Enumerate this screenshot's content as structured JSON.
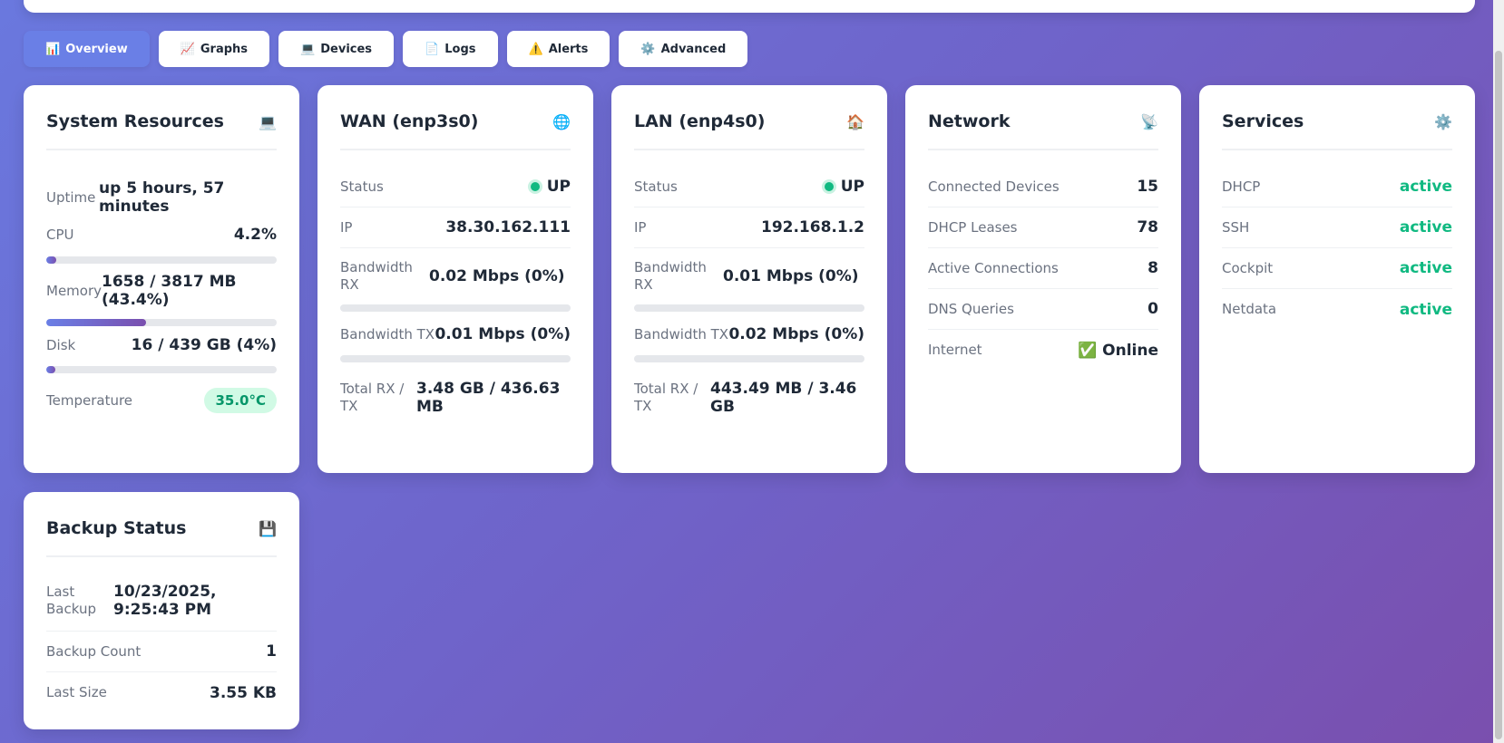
{
  "tabs": [
    {
      "icon": "📊",
      "label": "Overview",
      "active": true
    },
    {
      "icon": "📈",
      "label": "Graphs"
    },
    {
      "icon": "💻",
      "label": "Devices"
    },
    {
      "icon": "📄",
      "label": "Logs"
    },
    {
      "icon": "⚠️",
      "label": "Alerts"
    },
    {
      "icon": "⚙️",
      "label": "Advanced"
    }
  ],
  "system": {
    "title": "System Resources",
    "icon": "💻",
    "uptime_label": "Uptime",
    "uptime_value": "up 5 hours, 57 minutes",
    "cpu_label": "CPU",
    "cpu_value": "4.2%",
    "cpu_percent": 4.2,
    "memory_label": "Memory",
    "memory_value": "1658 / 3817 MB (43.4%)",
    "memory_percent": 43.4,
    "disk_label": "Disk",
    "disk_value": "16 / 439 GB (4%)",
    "disk_percent": 4,
    "temp_label": "Temperature",
    "temp_value": "35.0°C"
  },
  "wan": {
    "title": "WAN (enp3s0)",
    "icon": "🌐",
    "status_label": "Status",
    "status_value": "UP",
    "ip_label": "IP",
    "ip_value": "38.30.162.111",
    "rx_label": "Bandwidth RX",
    "rx_value": "0.02 Mbps (0%)",
    "rx_percent": 0,
    "tx_label": "Bandwidth TX",
    "tx_value": "0.01 Mbps (0%)",
    "tx_percent": 0,
    "total_label": "Total RX / TX",
    "total_value": "3.48 GB / 436.63 MB"
  },
  "lan": {
    "title": "LAN (enp4s0)",
    "icon": "🏠",
    "status_label": "Status",
    "status_value": "UP",
    "ip_label": "IP",
    "ip_value": "192.168.1.2",
    "rx_label": "Bandwidth RX",
    "rx_value": "0.01 Mbps (0%)",
    "rx_percent": 0,
    "tx_label": "Bandwidth TX",
    "tx_value": "0.02 Mbps (0%)",
    "tx_percent": 0,
    "total_label": "Total RX / TX",
    "total_value": "443.49 MB / 3.46 GB"
  },
  "network": {
    "title": "Network",
    "icon": "📡",
    "rows": [
      {
        "label": "Connected Devices",
        "value": "15"
      },
      {
        "label": "DHCP Leases",
        "value": "78"
      },
      {
        "label": "Active Connections",
        "value": "8"
      },
      {
        "label": "DNS Queries",
        "value": "0"
      },
      {
        "label": "Internet",
        "value": "✅ Online"
      }
    ]
  },
  "services": {
    "title": "Services",
    "icon": "⚙️",
    "rows": [
      {
        "label": "DHCP",
        "value": "active"
      },
      {
        "label": "SSH",
        "value": "active"
      },
      {
        "label": "Cockpit",
        "value": "active"
      },
      {
        "label": "Netdata",
        "value": "active"
      }
    ]
  },
  "backup": {
    "title": "Backup Status",
    "icon": "💾",
    "last_label": "Last Backup",
    "last_value": "10/23/2025, 9:25:43 PM",
    "count_label": "Backup Count",
    "count_value": "1",
    "size_label": "Last Size",
    "size_value": "3.55 KB"
  },
  "colors": {
    "accent": "#6a7fe6",
    "success": "#10b981",
    "background_start": "#6a78de",
    "background_end": "#7a4fae"
  }
}
